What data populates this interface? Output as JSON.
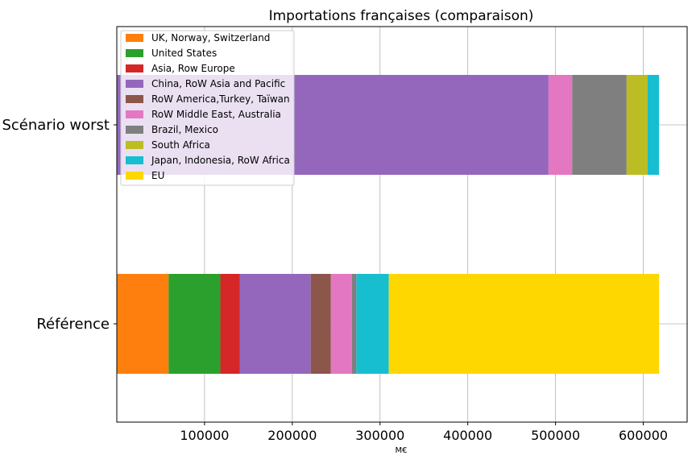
{
  "chart_data": {
    "type": "bar",
    "orientation": "horizontal",
    "stacked": true,
    "title": "Importations françaises (comparaison)",
    "xlabel": "M€",
    "ylabel": "",
    "xlim": [
      0,
      650000
    ],
    "x_ticks": [
      100000,
      200000,
      300000,
      400000,
      500000,
      600000
    ],
    "x_tick_labels": [
      "100000",
      "200000",
      "300000",
      "400000",
      "500000",
      "600000"
    ],
    "grid": true,
    "legend_position": "top-left",
    "categories": [
      "Scénario worst",
      "Référence"
    ],
    "series": [
      {
        "name": "UK, Norway, Switzerland",
        "color": "#ff7f0e",
        "values": [
          0,
          59000
        ]
      },
      {
        "name": "United States",
        "color": "#2ca02c",
        "values": [
          0,
          59000
        ]
      },
      {
        "name": "Asia, Row Europe",
        "color": "#d62728",
        "values": [
          0,
          22000
        ]
      },
      {
        "name": "China, RoW Asia and Pacific",
        "color": "#9467bd",
        "values": [
          492000,
          81000
        ]
      },
      {
        "name": "RoW America,Turkey, Taïwan",
        "color": "#8c564b",
        "values": [
          0,
          23000
        ]
      },
      {
        "name": "RoW Middle East, Australia",
        "color": "#e377c2",
        "values": [
          27000,
          24000
        ]
      },
      {
        "name": "Brazil, Mexico",
        "color": "#7f7f7f",
        "values": [
          62000,
          5000
        ]
      },
      {
        "name": "South Africa",
        "color": "#bcbd22",
        "values": [
          24000,
          0
        ]
      },
      {
        "name": "Japan, Indonesia, RoW Africa",
        "color": "#17becf",
        "values": [
          13000,
          37000
        ]
      },
      {
        "name": "EU",
        "color": "#ffd700",
        "values": [
          0,
          308000
        ]
      }
    ]
  }
}
